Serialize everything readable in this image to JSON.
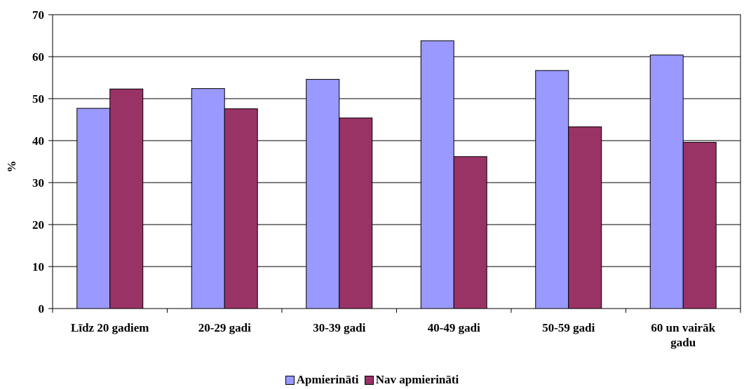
{
  "chart_data": {
    "type": "bar",
    "title": "",
    "xlabel": "",
    "ylabel": "%",
    "ylim": [
      0,
      70
    ],
    "yticks": [
      "0",
      "10",
      "20",
      "30",
      "40",
      "50",
      "60",
      "70"
    ],
    "grid": true,
    "legend_position": "bottom",
    "categories": [
      [
        "Līdz 20 gadiem"
      ],
      [
        "20-29 gadi"
      ],
      [
        "30-39 gadi"
      ],
      [
        "40-49 gadi"
      ],
      [
        "50-59 gadi"
      ],
      [
        "60 un vairāk",
        "gadu"
      ]
    ],
    "series": [
      {
        "name": "Apmierināti",
        "color": "#9999ff",
        "values": [
          47.7,
          52.4,
          54.6,
          63.8,
          56.7,
          60.4
        ]
      },
      {
        "name": "Nav apmierināti",
        "color": "#993366",
        "values": [
          52.3,
          47.6,
          45.4,
          36.2,
          43.3,
          39.6
        ]
      }
    ]
  }
}
